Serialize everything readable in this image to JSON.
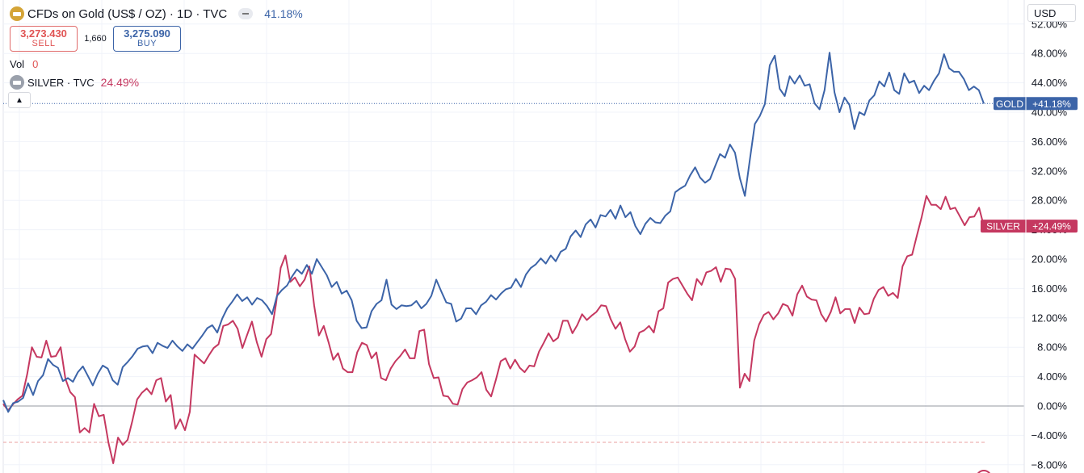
{
  "legend": {
    "title": "CFDs on Gold (US$ / OZ) · 1D · TVC",
    "change": "41.18%",
    "sell": {
      "price": "3,273.430",
      "label": "SELL"
    },
    "spread": "1,660",
    "buy": {
      "price": "3,275.090",
      "label": "BUY"
    },
    "volume": {
      "label": "Vol",
      "value": "0"
    },
    "compare": {
      "name": "SILVER · TVC",
      "change": "24.49%"
    },
    "collapse_icon": "chevron-up-icon"
  },
  "currency": "USD",
  "colors": {
    "gold": "#3c64a8",
    "silver": "#c53860",
    "sell": "#e05454"
  },
  "chart_data": {
    "type": "line",
    "y_unit": "percent change",
    "ylim": [
      -8,
      52
    ],
    "ticks": [
      "52.00%",
      "48.00%",
      "44.00%",
      "40.00%",
      "36.00%",
      "32.00%",
      "28.00%",
      "24.00%",
      "20.00%",
      "16.00%",
      "12.00%",
      "8.00%",
      "4.00%",
      "0.00%",
      "−4.00%",
      "−8.00%"
    ],
    "tick_values": [
      52,
      48,
      44,
      40,
      36,
      32,
      28,
      24,
      20,
      16,
      12,
      8,
      4,
      0,
      -4,
      -8
    ],
    "grid": true,
    "series": [
      {
        "name": "GOLD",
        "badge": "+41.18%",
        "values": [
          0.8,
          -0.8,
          0.4,
          0.6,
          1.1,
          3.1,
          1.5,
          3.4,
          4.2,
          6.4,
          5.6,
          5.2,
          3.4,
          3.8,
          3.3,
          4.6,
          5.4,
          4.1,
          2.8,
          4.4,
          5.5,
          5.1,
          3.5,
          2.9,
          5.3,
          6.0,
          6.8,
          7.8,
          8.1,
          8.2,
          7.2,
          8.6,
          8.2,
          7.9,
          8.9,
          8.1,
          7.5,
          8.4,
          7.8,
          8.7,
          9.6,
          10.6,
          11.0,
          10.0,
          11.9,
          13.3,
          14.2,
          15.2,
          14.3,
          14.8,
          13.8,
          14.7,
          14.4,
          13.6,
          12.5,
          15.0,
          15.8,
          16.4,
          17.6,
          18.6,
          18.0,
          19.2,
          18.0,
          20.0,
          18.9,
          17.8,
          16.2,
          16.9,
          15.3,
          15.7,
          14.4,
          11.6,
          10.6,
          10.7,
          12.9,
          13.9,
          14.4,
          17.2,
          13.8,
          13.2,
          13.7,
          13.6,
          13.7,
          14.3,
          13.3,
          13.9,
          15.0,
          17.2,
          15.6,
          14.1,
          13.9,
          11.5,
          11.9,
          13.3,
          13.3,
          12.5,
          13.7,
          14.2,
          15.1,
          14.5,
          15.3,
          15.9,
          16.1,
          17.3,
          16.2,
          17.9,
          18.8,
          19.3,
          20.1,
          19.4,
          20.5,
          19.7,
          21.0,
          21.4,
          23.1,
          23.9,
          23.0,
          24.7,
          25.4,
          24.3,
          26.0,
          25.8,
          26.7,
          25.5,
          27.3,
          25.7,
          26.4,
          24.5,
          23.4,
          24.8,
          25.6,
          25.0,
          24.9,
          25.9,
          26.5,
          29.1,
          29.6,
          30.0,
          31.4,
          32.5,
          31.1,
          30.4,
          30.9,
          32.6,
          34.3,
          33.8,
          35.6,
          34.5,
          31.0,
          28.6,
          33.6,
          38.4,
          39.5,
          41.1,
          46.4,
          47.7,
          43.2,
          42.2,
          44.9,
          43.9,
          45.0,
          43.6,
          43.8,
          41.2,
          40.4,
          43.0,
          48.1,
          42.7,
          40.0,
          42.0,
          41.0,
          37.7,
          40.0,
          39.6,
          41.6,
          42.3,
          44.2,
          43.5,
          45.4,
          43.0,
          42.5,
          45.3,
          44.0,
          44.3,
          42.6,
          43.6,
          43.0,
          44.3,
          45.3,
          47.9,
          46.0,
          45.5,
          45.5,
          44.5,
          43.0,
          43.5,
          43.0,
          41.18
        ]
      },
      {
        "name": "SILVER",
        "badge": "+24.49%",
        "values": [
          0.3,
          -0.6,
          0.2,
          0.9,
          1.4,
          4.3,
          8.0,
          6.7,
          6.6,
          8.9,
          6.7,
          6.8,
          8.0,
          3.7,
          1.9,
          1.2,
          -3.6,
          -3.0,
          -3.6,
          0.3,
          -1.4,
          -1.2,
          -5.0,
          -7.8,
          -4.3,
          -5.3,
          -4.6,
          -2.0,
          0.9,
          1.8,
          2.4,
          1.6,
          3.5,
          3.8,
          0.6,
          1.5,
          -3.1,
          -1.8,
          -3.3,
          -0.8,
          7.0,
          6.4,
          5.8,
          6.9,
          7.9,
          8.4,
          10.9,
          11.1,
          11.6,
          10.5,
          7.9,
          9.7,
          11.5,
          8.7,
          6.7,
          9.1,
          9.8,
          13.8,
          18.8,
          20.5,
          16.9,
          17.5,
          16.3,
          17.2,
          19.0,
          13.7,
          9.6,
          10.9,
          8.7,
          6.3,
          7.2,
          5.1,
          4.6,
          4.6,
          7.3,
          8.6,
          8.3,
          6.5,
          7.3,
          3.8,
          3.5,
          5.1,
          6.1,
          6.8,
          7.7,
          6.5,
          6.5,
          10.2,
          10.4,
          5.7,
          3.8,
          3.9,
          1.4,
          1.3,
          0.3,
          0.2,
          2.3,
          3.2,
          3.5,
          3.9,
          4.6,
          2.2,
          1.3,
          3.6,
          6.1,
          6.5,
          5.1,
          6.3,
          5.2,
          4.6,
          5.5,
          5.4,
          7.4,
          8.6,
          9.9,
          8.8,
          9.3,
          11.6,
          11.6,
          9.9,
          11.0,
          12.5,
          11.7,
          12.3,
          12.8,
          13.7,
          13.6,
          11.8,
          10.5,
          11.4,
          9.1,
          7.4,
          8.1,
          10.0,
          10.3,
          10.9,
          10.0,
          12.9,
          13.3,
          16.8,
          17.3,
          17.5,
          16.4,
          15.3,
          14.4,
          17.3,
          16.5,
          18.2,
          18.4,
          18.9,
          16.9,
          18.7,
          18.6,
          17.3,
          2.5,
          4.4,
          3.4,
          8.9,
          11.1,
          12.4,
          12.8,
          11.8,
          12.6,
          13.9,
          13.6,
          12.3,
          15.2,
          16.4,
          14.9,
          14.5,
          14.4,
          12.5,
          11.5,
          12.8,
          14.8,
          12.6,
          13.2,
          13.2,
          11.3,
          13.4,
          12.5,
          12.6,
          14.6,
          15.8,
          16.2,
          15.0,
          15.4,
          14.7,
          19.0,
          20.4,
          20.6,
          23.2,
          25.7,
          28.6,
          27.4,
          27.4,
          26.8,
          28.5,
          26.8,
          27.0,
          25.8,
          24.6,
          25.7,
          25.8,
          27.0,
          24.49
        ]
      }
    ]
  }
}
